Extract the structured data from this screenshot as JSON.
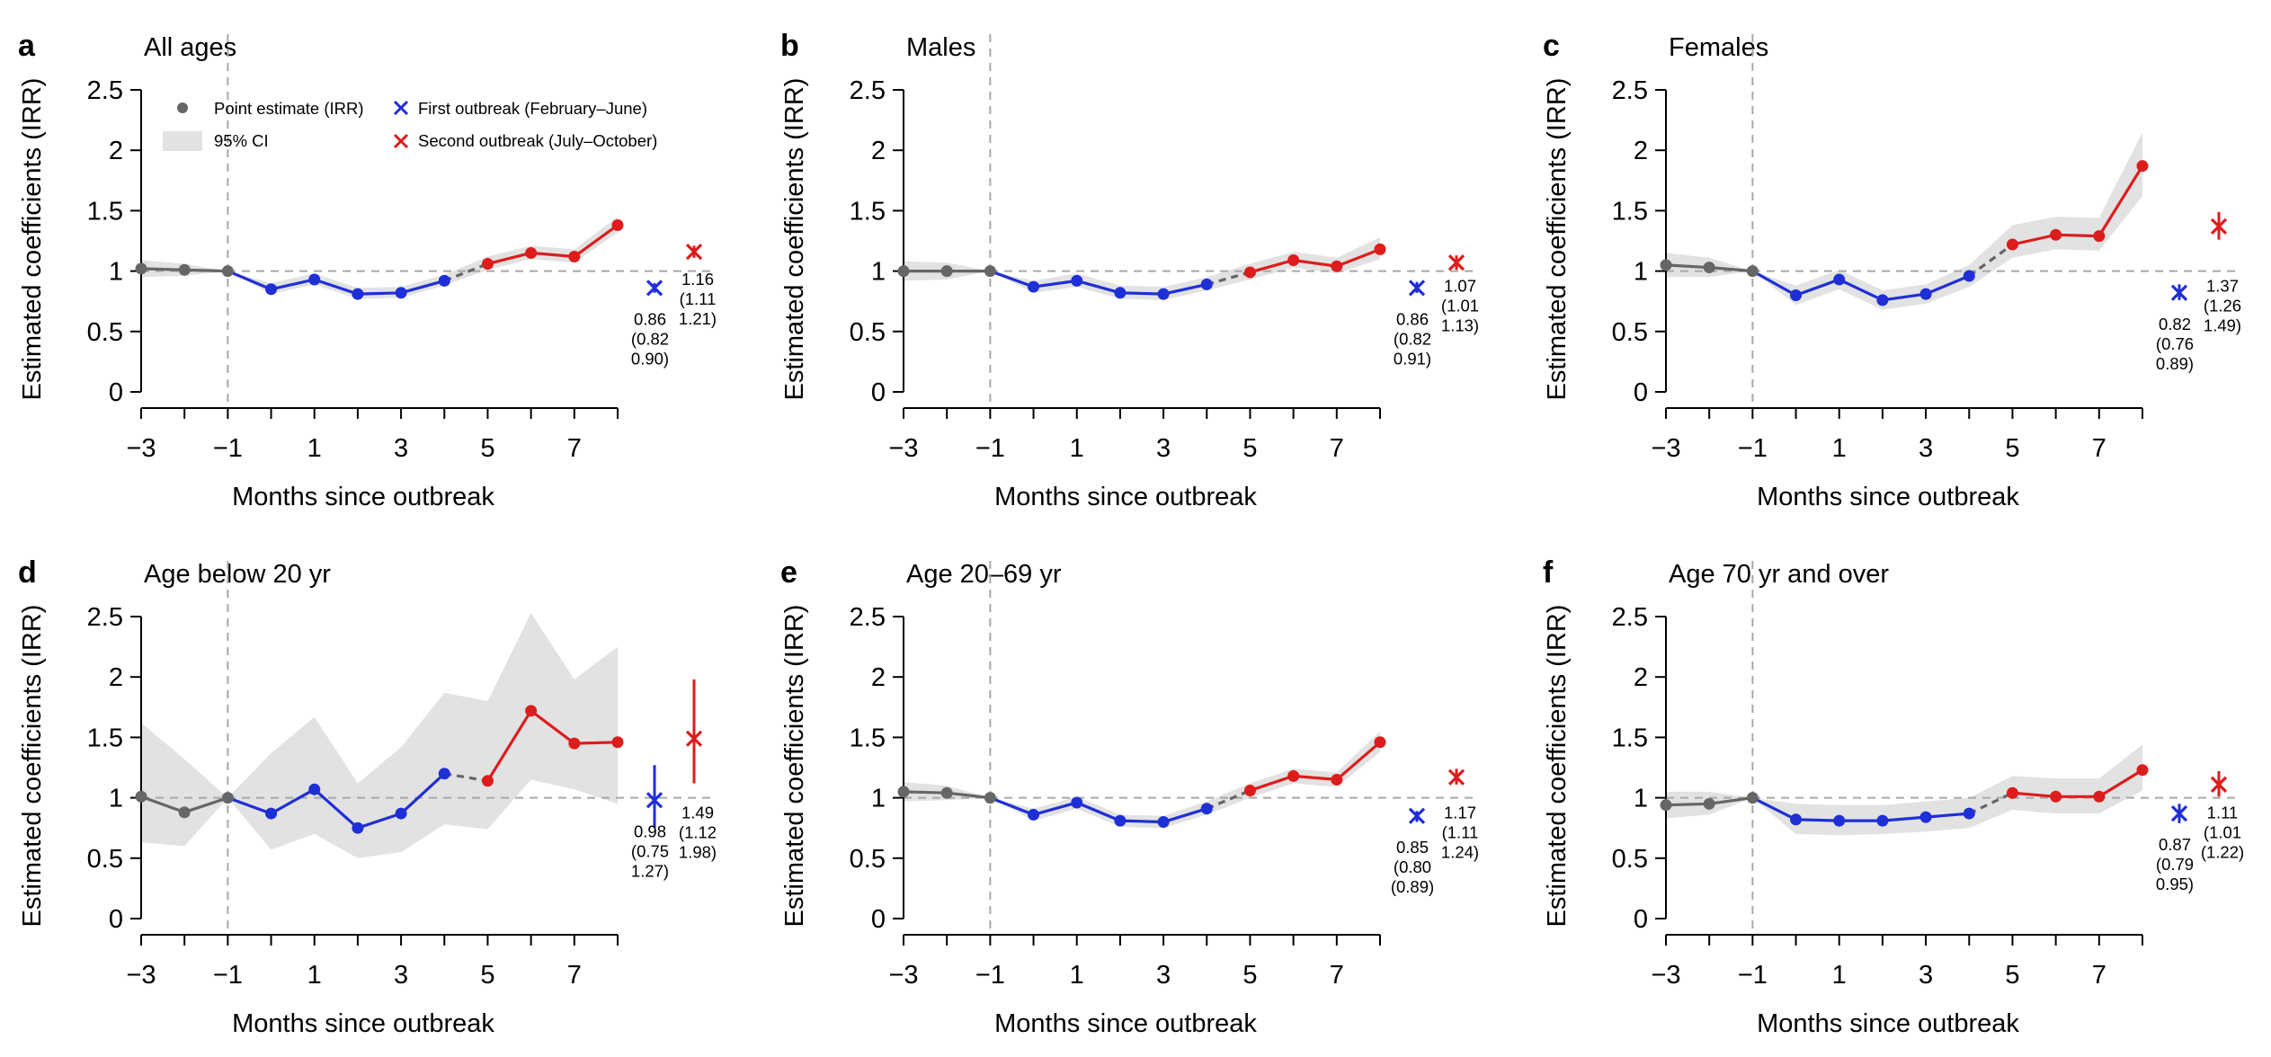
{
  "colors": {
    "pre": "#666666",
    "first": "#1f2fd6",
    "second": "#dd1c1c",
    "ci": "#e2e2e2",
    "ref": "#a8a8a8",
    "axis": "#000000"
  },
  "legend": {
    "point": "Point estimate (IRR)",
    "ci": "95% CI",
    "first": "First outbreak (February–June)",
    "second": "Second outbreak (July–October)"
  },
  "chart_data": [
    {
      "letter": "a",
      "title": "All ages",
      "type": "line",
      "xlabel": "Months since outbreak",
      "ylabel": "Estimated coefficients (IRR)",
      "xlim": [
        -3,
        8
      ],
      "ylim": [
        0,
        2.5
      ],
      "xticks": [
        "−3",
        "−1",
        "1",
        "3",
        "5",
        "7"
      ],
      "yticks": [
        "0",
        "0.5",
        "1",
        "1.5",
        "2",
        "2.5"
      ],
      "reference_line_y": 1,
      "reference_line_x": -1,
      "x": [
        -3,
        -2,
        -1,
        0,
        1,
        2,
        3,
        4,
        5,
        6,
        7,
        8
      ],
      "y": [
        1.02,
        1.01,
        1.0,
        0.85,
        0.93,
        0.81,
        0.82,
        0.92,
        1.06,
        1.15,
        1.12,
        1.38
      ],
      "ci_lower": [
        0.95,
        0.96,
        1.0,
        0.81,
        0.89,
        0.77,
        0.78,
        0.88,
        1.01,
        1.1,
        1.07,
        1.32
      ],
      "ci_upper": [
        1.09,
        1.06,
        1.0,
        0.9,
        0.98,
        0.86,
        0.87,
        0.97,
        1.12,
        1.21,
        1.18,
        1.45
      ],
      "summary": [
        {
          "name": "First outbreak",
          "value": 0.86,
          "lo": 0.82,
          "hi": 0.9,
          "lines": [
            "0.86",
            "(0.82",
            "0.90)"
          ]
        },
        {
          "name": "Second outbreak",
          "value": 1.16,
          "lo": 1.11,
          "hi": 1.21,
          "lines": [
            "1.16",
            "(1.11",
            "1.21)"
          ]
        }
      ],
      "show_legend": true
    },
    {
      "letter": "b",
      "title": "Males",
      "type": "line",
      "xlabel": "Months since outbreak",
      "ylabel": "Estimated coefficients (IRR)",
      "xlim": [
        -3,
        8
      ],
      "ylim": [
        0,
        2.5
      ],
      "xticks": [
        "−3",
        "−1",
        "1",
        "3",
        "5",
        "7"
      ],
      "yticks": [
        "0",
        "0.5",
        "1",
        "1.5",
        "2",
        "2.5"
      ],
      "reference_line_y": 1,
      "reference_line_x": -1,
      "x": [
        -3,
        -2,
        -1,
        0,
        1,
        2,
        3,
        4,
        5,
        6,
        7,
        8
      ],
      "y": [
        1.0,
        1.0,
        1.0,
        0.87,
        0.92,
        0.82,
        0.81,
        0.89,
        0.99,
        1.09,
        1.04,
        1.18
      ],
      "ci_lower": [
        0.92,
        0.93,
        1.0,
        0.82,
        0.87,
        0.77,
        0.76,
        0.84,
        0.93,
        1.03,
        0.98,
        1.1
      ],
      "ci_upper": [
        1.08,
        1.07,
        1.0,
        0.92,
        0.98,
        0.88,
        0.87,
        0.95,
        1.06,
        1.16,
        1.11,
        1.28
      ],
      "summary": [
        {
          "name": "First outbreak",
          "value": 0.86,
          "lo": 0.82,
          "hi": 0.91,
          "lines": [
            "0.86",
            "(0.82",
            "0.91)"
          ]
        },
        {
          "name": "Second outbreak",
          "value": 1.07,
          "lo": 1.01,
          "hi": 1.13,
          "lines": [
            "1.07",
            "(1.01",
            "1.13)"
          ]
        }
      ],
      "show_legend": false
    },
    {
      "letter": "c",
      "title": "Females",
      "type": "line",
      "xlabel": "Months since outbreak",
      "ylabel": "Estimated coefficients (IRR)",
      "xlim": [
        -3,
        8
      ],
      "ylim": [
        0,
        2.5
      ],
      "xticks": [
        "−3",
        "−1",
        "1",
        "3",
        "5",
        "7"
      ],
      "yticks": [
        "0",
        "0.5",
        "1",
        "1.5",
        "2",
        "2.5"
      ],
      "reference_line_y": 1,
      "reference_line_x": -1,
      "x": [
        -3,
        -2,
        -1,
        0,
        1,
        2,
        3,
        4,
        5,
        6,
        7,
        8
      ],
      "y": [
        1.05,
        1.03,
        1.0,
        0.8,
        0.93,
        0.76,
        0.81,
        0.96,
        1.22,
        1.3,
        1.29,
        1.87
      ],
      "ci_lower": [
        0.95,
        0.95,
        1.0,
        0.72,
        0.85,
        0.68,
        0.73,
        0.87,
        1.11,
        1.18,
        1.17,
        1.62
      ],
      "ci_upper": [
        1.15,
        1.11,
        1.0,
        0.88,
        1.01,
        0.84,
        0.89,
        1.05,
        1.38,
        1.45,
        1.44,
        2.15
      ],
      "summary": [
        {
          "name": "First outbreak",
          "value": 0.82,
          "lo": 0.76,
          "hi": 0.89,
          "lines": [
            "0.82",
            "(0.76",
            "0.89)"
          ]
        },
        {
          "name": "Second outbreak",
          "value": 1.37,
          "lo": 1.26,
          "hi": 1.49,
          "lines": [
            "1.37",
            "(1.26",
            "1.49)"
          ]
        }
      ],
      "show_legend": false
    },
    {
      "letter": "d",
      "title": "Age below 20 yr",
      "type": "line",
      "xlabel": "Months since outbreak",
      "ylabel": "Estimated coefficients (IRR)",
      "xlim": [
        -3,
        8
      ],
      "ylim": [
        0,
        2.5
      ],
      "xticks": [
        "−3",
        "−1",
        "1",
        "3",
        "5",
        "7"
      ],
      "yticks": [
        "0",
        "0.5",
        "1",
        "1.5",
        "2",
        "2.5"
      ],
      "reference_line_y": 1,
      "reference_line_x": -1,
      "x": [
        -3,
        -2,
        -1,
        0,
        1,
        2,
        3,
        4,
        5,
        6,
        7,
        8
      ],
      "y": [
        1.01,
        0.88,
        1.0,
        0.87,
        1.07,
        0.75,
        0.87,
        1.2,
        1.14,
        1.72,
        1.45,
        1.46
      ],
      "ci_lower": [
        0.63,
        0.6,
        1.0,
        0.57,
        0.7,
        0.5,
        0.55,
        0.78,
        0.74,
        1.15,
        1.07,
        0.95
      ],
      "ci_upper": [
        1.62,
        1.32,
        1.0,
        1.37,
        1.67,
        1.12,
        1.42,
        1.87,
        1.8,
        2.53,
        1.98,
        2.25
      ],
      "summary": [
        {
          "name": "First outbreak",
          "value": 0.98,
          "lo": 0.75,
          "hi": 1.27,
          "lines": [
            "0.98",
            "(0.75",
            "1.27)"
          ]
        },
        {
          "name": "Second outbreak",
          "value": 1.49,
          "lo": 1.12,
          "hi": 1.98,
          "lines": [
            "1.49",
            "(1.12",
            "1.98)"
          ]
        }
      ],
      "show_legend": false
    },
    {
      "letter": "e",
      "title": "Age 20–69 yr",
      "type": "line",
      "xlabel": "Months since outbreak",
      "ylabel": "Estimated coefficients (IRR)",
      "xlim": [
        -3,
        8
      ],
      "ylim": [
        0,
        2.5
      ],
      "xticks": [
        "−3",
        "−1",
        "1",
        "3",
        "5",
        "7"
      ],
      "yticks": [
        "0",
        "0.5",
        "1",
        "1.5",
        "2",
        "2.5"
      ],
      "reference_line_y": 1,
      "reference_line_x": -1,
      "x": [
        -3,
        -2,
        -1,
        0,
        1,
        2,
        3,
        4,
        5,
        6,
        7,
        8
      ],
      "y": [
        1.05,
        1.04,
        1.0,
        0.86,
        0.96,
        0.81,
        0.8,
        0.91,
        1.06,
        1.18,
        1.15,
        1.46
      ],
      "ci_lower": [
        0.97,
        0.98,
        1.0,
        0.81,
        0.91,
        0.76,
        0.75,
        0.86,
        1.0,
        1.12,
        1.09,
        1.38
      ],
      "ci_upper": [
        1.13,
        1.1,
        1.0,
        0.91,
        1.01,
        0.86,
        0.85,
        0.97,
        1.12,
        1.24,
        1.21,
        1.55
      ],
      "summary": [
        {
          "name": "First outbreak",
          "value": 0.85,
          "lo": 0.8,
          "hi": 0.89,
          "lines": [
            "0.85",
            "(0.80",
            "(0.89)"
          ]
        },
        {
          "name": "Second outbreak",
          "value": 1.17,
          "lo": 1.11,
          "hi": 1.24,
          "lines": [
            "1.17",
            "(1.11",
            "1.24)"
          ]
        }
      ],
      "show_legend": false
    },
    {
      "letter": "f",
      "title": "Age 70 yr and over",
      "type": "line",
      "xlabel": "Months since outbreak",
      "ylabel": "Estimated coefficients (IRR)",
      "xlim": [
        -3,
        8
      ],
      "ylim": [
        0,
        2.5
      ],
      "xticks": [
        "−3",
        "−1",
        "1",
        "3",
        "5",
        "7"
      ],
      "yticks": [
        "0",
        "0.5",
        "1",
        "1.5",
        "2",
        "2.5"
      ],
      "reference_line_y": 1,
      "reference_line_x": -1,
      "x": [
        -3,
        -2,
        -1,
        0,
        1,
        2,
        3,
        4,
        5,
        6,
        7,
        8
      ],
      "y": [
        0.94,
        0.95,
        1.0,
        0.82,
        0.81,
        0.81,
        0.84,
        0.87,
        1.04,
        1.01,
        1.01,
        1.23
      ],
      "ci_lower": [
        0.83,
        0.86,
        1.0,
        0.7,
        0.69,
        0.7,
        0.72,
        0.75,
        0.9,
        0.87,
        0.87,
        1.06
      ],
      "ci_upper": [
        1.05,
        1.05,
        1.0,
        0.95,
        0.94,
        0.94,
        0.97,
        1.0,
        1.18,
        1.16,
        1.16,
        1.44
      ],
      "summary": [
        {
          "name": "First outbreak",
          "value": 0.87,
          "lo": 0.79,
          "hi": 0.95,
          "lines": [
            "0.87",
            "(0.79",
            "0.95)"
          ]
        },
        {
          "name": "Second outbreak",
          "value": 1.11,
          "lo": 1.01,
          "hi": 1.22,
          "lines": [
            "1.11",
            "(1.01",
            "(1.22)"
          ]
        }
      ],
      "show_legend": false
    }
  ]
}
